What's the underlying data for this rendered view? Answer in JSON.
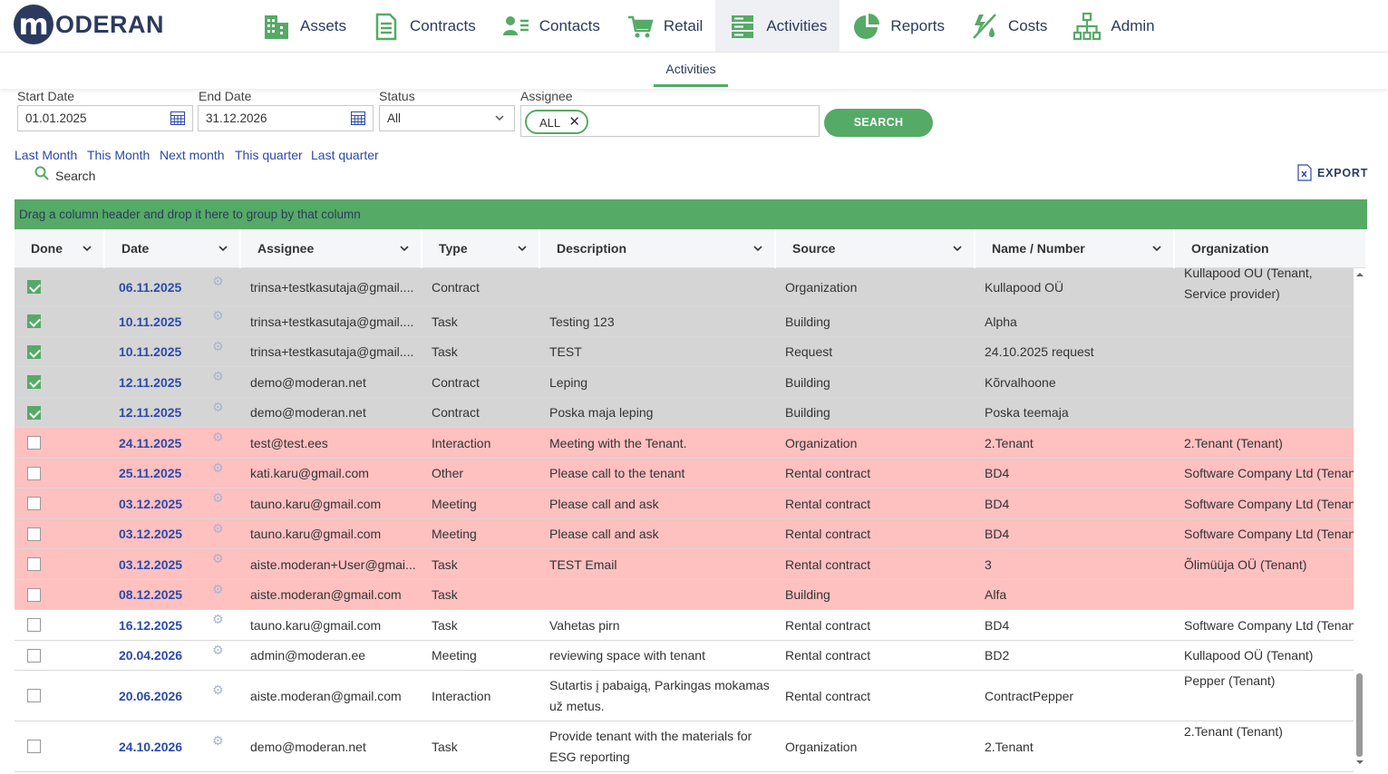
{
  "app": {
    "logo_letter": "m",
    "logo_text": "ODERAN"
  },
  "nav": [
    {
      "label": "Assets",
      "icon": "buildings-icon"
    },
    {
      "label": "Contracts",
      "icon": "document-icon"
    },
    {
      "label": "Contacts",
      "icon": "contacts-icon"
    },
    {
      "label": "Retail",
      "icon": "cart-icon"
    },
    {
      "label": "Activities",
      "icon": "server-list-icon",
      "active": true
    },
    {
      "label": "Reports",
      "icon": "pie-chart-icon"
    },
    {
      "label": "Costs",
      "icon": "energy-icon"
    },
    {
      "label": "Admin",
      "icon": "org-chart-icon"
    }
  ],
  "subnav": {
    "tab": "Activities"
  },
  "filters": {
    "start_date_label": "Start Date",
    "start_date": "01.01.2025",
    "end_date_label": "End Date",
    "end_date": "31.12.2026",
    "status_label": "Status",
    "status": "All",
    "assignee_label": "Assignee",
    "assignee_chip": "ALL",
    "search_button": "SEARCH"
  },
  "quick_ranges": [
    "Last Month",
    "This Month",
    "Next month",
    "This quarter",
    "Last quarter"
  ],
  "search_link": "Search",
  "export_label": "EXPORT",
  "grid": {
    "group_hint": "Drag a column header and drop it here to group by that column",
    "columns": [
      "Done",
      "Date",
      "Assignee",
      "Type",
      "Description",
      "Source",
      "Name / Number",
      "Organization"
    ],
    "rows": [
      {
        "done": true,
        "date": "06.11.2025",
        "assignee": "trinsa+testkasutaja@gmail....",
        "type": "Contract",
        "description": "",
        "source": "Organization",
        "name": "Kullapood OÜ",
        "org": "Kullapood OÜ (Tenant, Service provider)",
        "status": "done"
      },
      {
        "done": true,
        "date": "10.11.2025",
        "assignee": "trinsa+testkasutaja@gmail....",
        "type": "Task",
        "description": "Testing 123",
        "source": "Building",
        "name": "Alpha",
        "org": "",
        "status": "done"
      },
      {
        "done": true,
        "date": "10.11.2025",
        "assignee": "trinsa+testkasutaja@gmail....",
        "type": "Task",
        "description": "TEST",
        "source": "Request",
        "name": "24.10.2025 request",
        "org": "",
        "status": "done"
      },
      {
        "done": true,
        "date": "12.11.2025",
        "assignee": "demo@moderan.net",
        "type": "Contract",
        "description": "Leping",
        "source": "Building",
        "name": "Kõrvalhoone",
        "org": "",
        "status": "done"
      },
      {
        "done": true,
        "date": "12.11.2025",
        "assignee": "demo@moderan.net",
        "type": "Contract",
        "description": "Poska maja leping",
        "source": "Building",
        "name": "Poska teemaja",
        "org": "",
        "status": "done"
      },
      {
        "done": false,
        "date": "24.11.2025",
        "assignee": "test@test.ees",
        "type": "Interaction",
        "description": "Meeting with the Tenant.",
        "source": "Organization",
        "name": "2.Tenant",
        "org": "2.Tenant (Tenant)",
        "status": "overdue"
      },
      {
        "done": false,
        "date": "25.11.2025",
        "assignee": "kati.karu@gmail.com",
        "type": "Other",
        "description": "Please call to the tenant",
        "source": "Rental contract",
        "name": "BD4",
        "org": "Software Company Ltd (Tenant",
        "status": "overdue"
      },
      {
        "done": false,
        "date": "03.12.2025",
        "assignee": "tauno.karu@gmail.com",
        "type": "Meeting",
        "description": "Please call and ask",
        "source": "Rental contract",
        "name": "BD4",
        "org": "Software Company Ltd (Tenant",
        "status": "overdue"
      },
      {
        "done": false,
        "date": "03.12.2025",
        "assignee": "tauno.karu@gmail.com",
        "type": "Meeting",
        "description": "Please call and ask",
        "source": "Rental contract",
        "name": "BD4",
        "org": "Software Company Ltd (Tenant",
        "status": "overdue"
      },
      {
        "done": false,
        "date": "03.12.2025",
        "assignee": "aiste.moderan+User@gmai...",
        "type": "Task",
        "description": "TEST Email",
        "source": "Rental contract",
        "name": "3",
        "org": "Õlimüüja OÜ (Tenant)",
        "status": "overdue"
      },
      {
        "done": false,
        "date": "08.12.2025",
        "assignee": "aiste.moderan@gmail.com",
        "type": "Task",
        "description": "",
        "source": "Building",
        "name": "Alfa",
        "org": "",
        "status": "overdue"
      },
      {
        "done": false,
        "date": "16.12.2025",
        "assignee": "tauno.karu@gmail.com",
        "type": "Task",
        "description": "Vahetas pirn",
        "source": "Rental contract",
        "name": "BD4",
        "org": "Software Company Ltd (Tenant",
        "status": "normal"
      },
      {
        "done": false,
        "date": "20.04.2026",
        "assignee": "admin@moderan.ee",
        "type": "Meeting",
        "description": "reviewing space with tenant",
        "source": "Rental contract",
        "name": "BD2",
        "org": "Kullapood OÜ (Tenant)",
        "status": "normal"
      },
      {
        "done": false,
        "date": "20.06.2026",
        "assignee": "aiste.moderan@gmail.com",
        "type": "Interaction",
        "description": "Sutartis į pabaigą, Parkingas mokamas už metus.",
        "source": "Rental contract",
        "name": "ContractPepper",
        "org": "Pepper (Tenant)",
        "status": "normal"
      },
      {
        "done": false,
        "date": "24.10.2026",
        "assignee": "demo@moderan.net",
        "type": "Task",
        "description": "Provide tenant with the materials for ESG reporting",
        "source": "Organization",
        "name": "2.Tenant",
        "org": "2.Tenant (Tenant)",
        "status": "normal"
      }
    ]
  },
  "colors": {
    "brand": "#2c3a5e",
    "accent": "#55aa66",
    "link": "#2c4aa8",
    "done_row": "#d5d5d5",
    "overdue_row": "#ffc0c0"
  }
}
